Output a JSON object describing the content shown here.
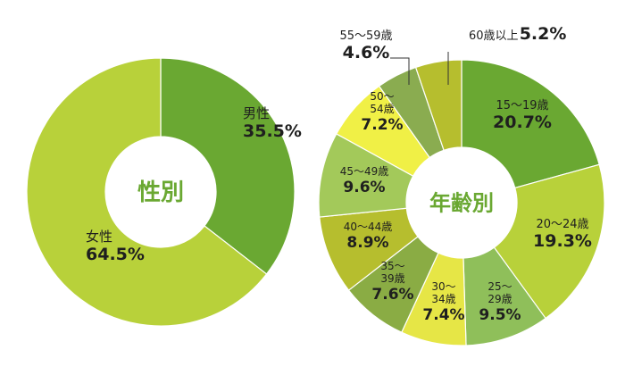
{
  "chart_data": [
    {
      "type": "pie",
      "title": "性別",
      "labels": [
        "男性",
        "女性"
      ],
      "values": [
        35.5,
        64.5
      ],
      "value_labels": [
        "35.5%",
        "64.5%"
      ],
      "colors": [
        "#6aa832",
        "#b8d13a"
      ]
    },
    {
      "type": "pie",
      "title": "年齢別",
      "labels": [
        "15～19歳",
        "20～24歳",
        "25～29歳",
        "30～34歳",
        "35～39歳",
        "40～44歳",
        "45～49歳",
        "50～54歳",
        "55～59歳",
        "60歳以上"
      ],
      "values": [
        20.7,
        19.3,
        9.5,
        7.4,
        7.6,
        8.9,
        9.6,
        7.2,
        4.6,
        5.2
      ],
      "value_labels": [
        "20.7%",
        "19.3%",
        "9.5%",
        "7.4%",
        "7.6%",
        "8.9%",
        "9.6%",
        "7.2%",
        "4.6%",
        "5.2%"
      ],
      "colors": [
        "#6aa832",
        "#b8d13a",
        "#8fbf5a",
        "#e6e646",
        "#8aac44",
        "#b6be2e",
        "#a3c95a",
        "#f0f046",
        "#8aac50",
        "#b6be2e"
      ]
    }
  ]
}
